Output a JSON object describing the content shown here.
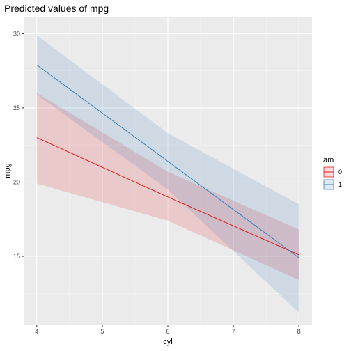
{
  "chart_data": {
    "type": "line",
    "title": "Predicted values of mpg",
    "xlabel": "cyl",
    "ylabel": "mpg",
    "xlim": [
      3.8,
      8.2
    ],
    "ylim": [
      10.4,
      31.1
    ],
    "x_ticks": [
      4,
      5,
      6,
      7,
      8
    ],
    "y_ticks": [
      15,
      20,
      25,
      30
    ],
    "grid": true,
    "legend": {
      "title": "am",
      "placement": "right"
    },
    "x": [
      4,
      6,
      8
    ],
    "series": [
      {
        "name": "0",
        "color": "#e41a1c",
        "values": [
          23.0,
          19.0,
          15.1
        ],
        "lower": [
          19.9,
          17.4,
          13.4
        ],
        "upper": [
          26.0,
          20.7,
          16.8
        ]
      },
      {
        "name": "1",
        "color": "#377eb8",
        "values": [
          27.9,
          21.4,
          14.9
        ],
        "lower": [
          25.9,
          19.5,
          11.2
        ],
        "upper": [
          29.9,
          23.3,
          18.5
        ]
      }
    ]
  }
}
